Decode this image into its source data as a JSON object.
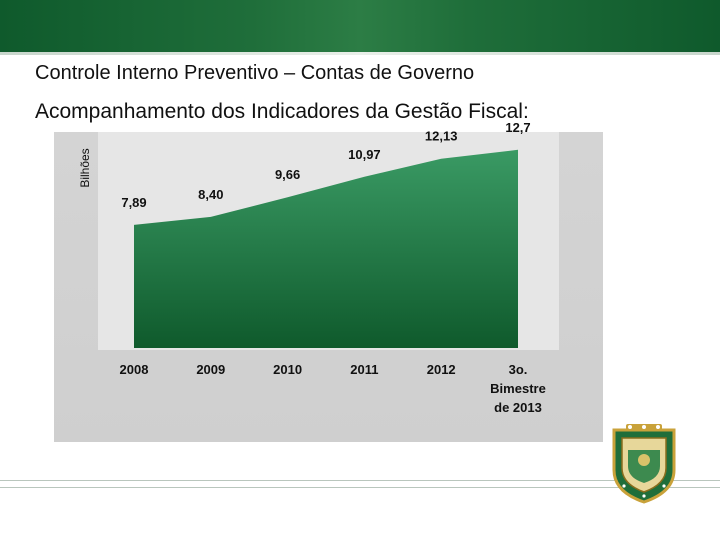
{
  "header": {
    "title": "Controle Interno Preventivo – Contas de Governo",
    "subtitle": "Acompanhamento dos Indicadores da Gestão Fiscal:"
  },
  "chart_data": {
    "type": "area",
    "ylabel": "Bilhões",
    "xlabel": "",
    "categories": [
      "2008",
      "2009",
      "2010",
      "2011",
      "2012",
      "3o. Bimestre de 2013"
    ],
    "category_lines": [
      [
        "2008"
      ],
      [
        "2009"
      ],
      [
        "2010"
      ],
      [
        "2011"
      ],
      [
        "2012"
      ],
      [
        "3o.",
        "Bimestre",
        "de 2013"
      ]
    ],
    "values": [
      7.89,
      8.4,
      9.66,
      10.97,
      12.13,
      12.7
    ],
    "value_labels": [
      "7,89",
      "8,40",
      "9,66",
      "10,97",
      "12,13",
      "12,7"
    ],
    "ylim": [
      0,
      13.2
    ],
    "grid": false,
    "legend": "none"
  },
  "colors": {
    "brand_green": "#1f6e3a",
    "plot_background": "#d9d9d9",
    "area_top": "#3a9a64",
    "area_bottom": "#0f5a2c"
  },
  "icons": {
    "emblem": "state-coat-of-arms-icon"
  }
}
